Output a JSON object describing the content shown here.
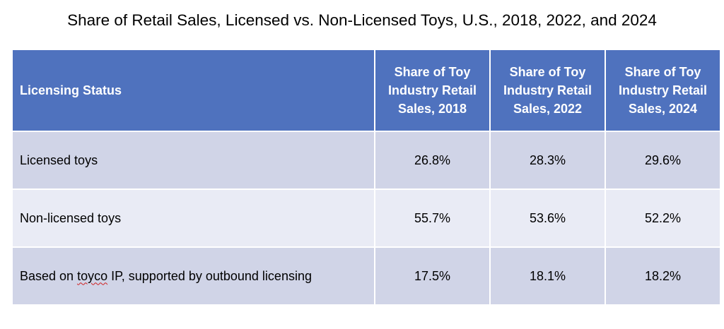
{
  "chart_data": {
    "type": "table",
    "title": "Share of Retail Sales, Licensed vs. Non-Licensed Toys, U.S., 2018, 2022, and 2024",
    "columns": [
      "Licensing Status",
      "Share of Toy Industry Retail Sales, 2018",
      "Share of Toy Industry Retail Sales, 2022",
      "Share of Toy Industry Retail Sales, 2024"
    ],
    "header_lines": [
      [
        "Share of Toy",
        "Industry Retail",
        "Sales, 2018"
      ],
      [
        "Share of Toy",
        "Industry Retail",
        "Sales, 2022"
      ],
      [
        "Share of Toy",
        "Industry Retail",
        "Sales, 2024"
      ]
    ],
    "rows": [
      {
        "label": "Licensed toys",
        "values": [
          "26.8%",
          "28.3%",
          "29.6%"
        ]
      },
      {
        "label": "Non-licensed toys",
        "values": [
          "55.7%",
          "53.6%",
          "52.2%"
        ]
      },
      {
        "label_prefix": "Based on ",
        "label_flagged": "toyco",
        "label_suffix": " IP, supported by outbound licensing",
        "values": [
          "17.5%",
          "18.1%",
          "18.2%"
        ]
      }
    ],
    "colors": {
      "header_fill": "#4f72be",
      "row_band_dark": "#d0d4e7",
      "row_band_light": "#e9ebf5"
    }
  }
}
